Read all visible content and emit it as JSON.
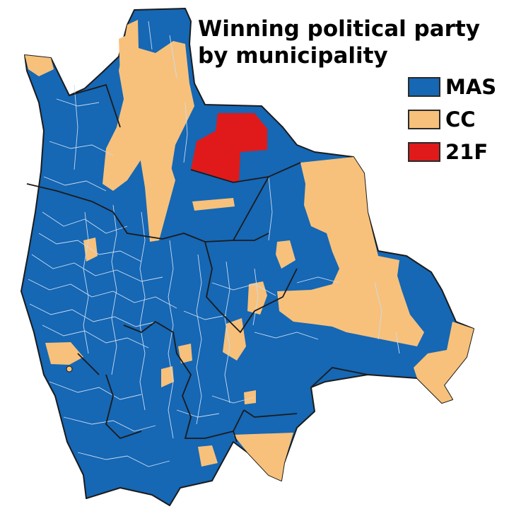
{
  "title_line1": "Winning political party",
  "title_line2": "by municipality",
  "legend": [
    {
      "label": "MAS",
      "color": "#1667b4"
    },
    {
      "label": "CC",
      "color": "#f7c17b"
    },
    {
      "label": "21F",
      "color": "#e01a1a"
    }
  ],
  "colors": {
    "MAS": "#1667b4",
    "CC": "#f7c17b",
    "21F": "#e01a1a",
    "municipal_border": "#c9dcf0",
    "department_border": "#1b1b1b"
  }
}
